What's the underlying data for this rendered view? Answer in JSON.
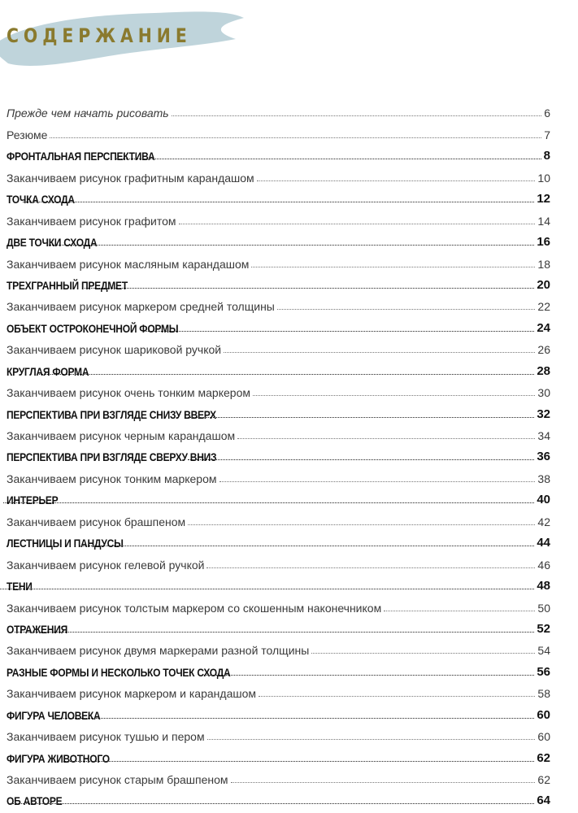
{
  "title": "СОДЕРЖАНИЕ",
  "colors": {
    "title": "#8a7a2e",
    "brush": "#a9c6cf"
  },
  "entries": [
    {
      "label": "Прежде чем начать рисовать",
      "page": "6",
      "style": "italic"
    },
    {
      "label": "Резюме",
      "page": "7",
      "style": "normal"
    },
    {
      "label": "ФРОНТАЛЬНАЯ ПЕРСПЕКТИВА",
      "page": "8",
      "style": "section"
    },
    {
      "label": "Заканчиваем рисунок графитным карандашом",
      "page": "10",
      "style": "normal"
    },
    {
      "label": "ТОЧКА СХОДА",
      "page": "12",
      "style": "section"
    },
    {
      "label": "Заканчиваем рисунок графитом",
      "page": "14",
      "style": "normal"
    },
    {
      "label": "ДВЕ ТОЧКИ СХОДА",
      "page": "16",
      "style": "section"
    },
    {
      "label": "Заканчиваем рисунок масляным карандашом",
      "page": "18",
      "style": "normal"
    },
    {
      "label": "ТРЕХГРАННЫЙ ПРЕДМЕТ",
      "page": "20",
      "style": "section"
    },
    {
      "label": "Заканчиваем рисунок маркером средней толщины",
      "page": "22",
      "style": "normal"
    },
    {
      "label": "ОБЪЕКТ ОСТРОКОНЕЧНОЙ ФОРМЫ",
      "page": "24",
      "style": "section"
    },
    {
      "label": "Заканчиваем рисунок шариковой ручкой",
      "page": "26",
      "style": "normal"
    },
    {
      "label": "КРУГЛАЯ ФОРМА",
      "page": "28",
      "style": "section"
    },
    {
      "label": "Заканчиваем рисунок очень тонким маркером",
      "page": "30",
      "style": "normal"
    },
    {
      "label": "ПЕРСПЕКТИВА ПРИ ВЗГЛЯДЕ СНИЗУ ВВЕРХ",
      "page": "32",
      "style": "section"
    },
    {
      "label": "Заканчиваем рисунок черным карандашом",
      "page": "34",
      "style": "normal"
    },
    {
      "label": "ПЕРСПЕКТИВА ПРИ ВЗГЛЯДЕ СВЕРХУ ВНИЗ",
      "page": "36",
      "style": "section"
    },
    {
      "label": "Заканчиваем рисунок тонким маркером",
      "page": "38",
      "style": "normal"
    },
    {
      "label": "ИНТЕРЬЕР",
      "page": "40",
      "style": "section"
    },
    {
      "label": "Заканчиваем рисунок брашпеном",
      "page": "42",
      "style": "normal"
    },
    {
      "label": "ЛЕСТНИЦЫ И ПАНДУСЫ",
      "page": "44",
      "style": "section"
    },
    {
      "label": "Заканчиваем рисунок гелевой ручкой",
      "page": "46",
      "style": "normal"
    },
    {
      "label": "ТЕНИ",
      "page": "48",
      "style": "section"
    },
    {
      "label": "Заканчиваем рисунок толстым маркером со скошенным наконечником",
      "page": "50",
      "style": "normal"
    },
    {
      "label": "ОТРАЖЕНИЯ",
      "page": "52",
      "style": "section"
    },
    {
      "label": "Заканчиваем рисунок двумя маркерами разной толщины",
      "page": "54",
      "style": "normal"
    },
    {
      "label": "РАЗНЫЕ ФОРМЫ И НЕСКОЛЬКО ТОЧЕК СХОДА",
      "page": "56",
      "style": "section"
    },
    {
      "label": "Заканчиваем рисунок маркером и карандашом",
      "page": "58",
      "style": "normal"
    },
    {
      "label": "ФИГУРА ЧЕЛОВЕКА",
      "page": "60",
      "style": "section"
    },
    {
      "label": "Заканчиваем рисунок тушью и пером",
      "page": "60",
      "style": "normal"
    },
    {
      "label": "ФИГУРА ЖИВОТНОГО",
      "page": "62",
      "style": "section"
    },
    {
      "label": "Заканчиваем рисунок старым брашпеном",
      "page": "62",
      "style": "normal"
    },
    {
      "label": "ОБ АВТОРЕ",
      "page": "64",
      "style": "section"
    }
  ]
}
